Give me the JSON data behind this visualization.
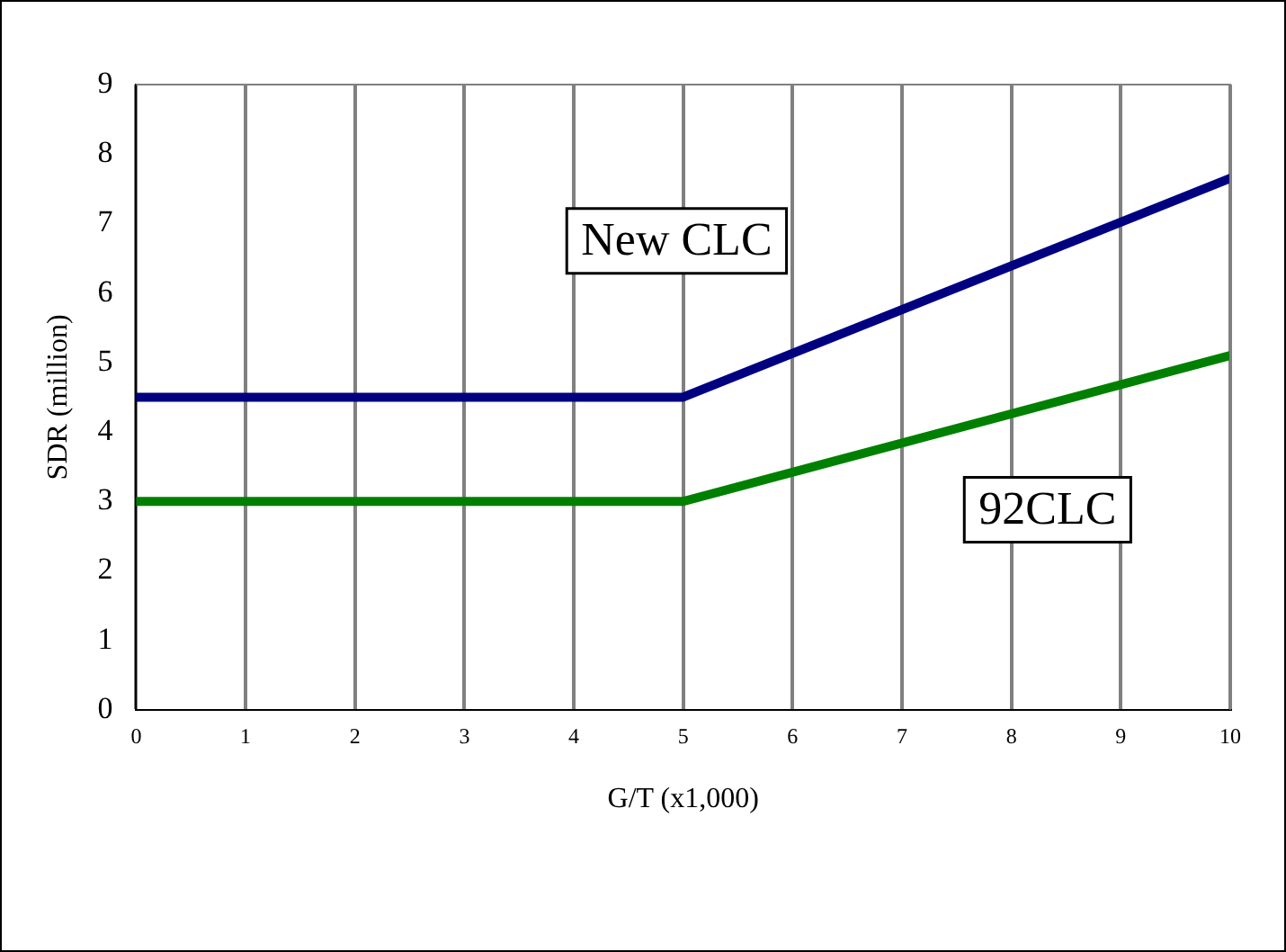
{
  "chart_data": {
    "type": "line",
    "xlabel": "G/T (x1,000)",
    "ylabel": "SDR (million)",
    "xlim": [
      0,
      10
    ],
    "xticks": [
      0,
      1,
      2,
      3,
      4,
      5,
      6,
      7,
      8,
      9,
      10
    ],
    "ylim": [
      0,
      9
    ],
    "yticks": [
      0,
      1,
      2,
      3,
      4,
      5,
      6,
      7,
      8,
      9
    ],
    "grid": "x",
    "marker": "none",
    "line_style": "solid",
    "series": [
      {
        "name": "New CLC",
        "color": "#000080",
        "x": [
          0,
          5,
          10
        ],
        "values": [
          4.5,
          4.5,
          7.65
        ]
      },
      {
        "name": "92CLC",
        "color": "#008000",
        "x": [
          0,
          5,
          10
        ],
        "values": [
          3,
          3,
          5.1
        ]
      }
    ]
  }
}
